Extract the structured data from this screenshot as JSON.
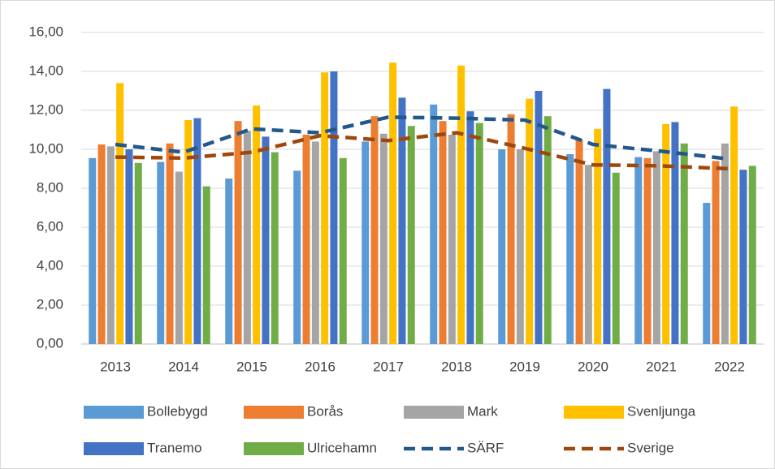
{
  "chart_data": {
    "type": "bar",
    "categories": [
      "2013",
      "2014",
      "2015",
      "2016",
      "2017",
      "2018",
      "2019",
      "2020",
      "2021",
      "2022"
    ],
    "series": [
      {
        "name": "Bollebygd",
        "type": "bar",
        "color": "#5b9bd5",
        "values": [
          9.55,
          9.35,
          8.5,
          8.9,
          10.4,
          12.3,
          10.0,
          9.75,
          9.6,
          7.25
        ]
      },
      {
        "name": "Borås",
        "type": "bar",
        "color": "#ed7d31",
        "values": [
          10.25,
          10.3,
          11.45,
          10.75,
          11.7,
          11.45,
          11.8,
          10.5,
          9.55,
          9.4
        ]
      },
      {
        "name": "Mark",
        "type": "bar",
        "color": "#a5a5a5",
        "values": [
          10.15,
          8.85,
          10.95,
          10.4,
          10.8,
          10.75,
          10.0,
          9.2,
          9.9,
          10.3
        ]
      },
      {
        "name": "Svenljunga",
        "type": "bar",
        "color": "#ffc000",
        "values": [
          13.4,
          11.5,
          12.25,
          13.95,
          14.45,
          14.3,
          12.6,
          11.05,
          11.3,
          12.2
        ]
      },
      {
        "name": "Tranemo",
        "type": "bar",
        "color": "#4472c4",
        "values": [
          10.0,
          11.6,
          10.65,
          14.0,
          12.65,
          11.95,
          13.0,
          13.1,
          11.4,
          8.95
        ]
      },
      {
        "name": "Ulricehamn",
        "type": "bar",
        "color": "#70ad47",
        "values": [
          9.3,
          8.1,
          9.85,
          9.55,
          11.2,
          11.35,
          11.7,
          8.8,
          10.3,
          9.15
        ]
      },
      {
        "name": "SÄRF",
        "type": "line",
        "dashed": true,
        "color": "#23598a",
        "values": [
          10.25,
          9.85,
          11.05,
          10.85,
          11.65,
          11.6,
          11.5,
          10.25,
          9.9,
          9.5
        ]
      },
      {
        "name": "Sverige",
        "type": "line",
        "dashed": true,
        "color": "#9e480e",
        "values": [
          9.6,
          9.55,
          9.85,
          10.7,
          10.45,
          10.85,
          10.05,
          9.2,
          9.15,
          9.0
        ]
      }
    ],
    "ylim": [
      0,
      16
    ],
    "yticks": [
      {
        "value": 0,
        "label": "0,00"
      },
      {
        "value": 2,
        "label": "2,00"
      },
      {
        "value": 4,
        "label": "4,00"
      },
      {
        "value": 6,
        "label": "6,00"
      },
      {
        "value": 8,
        "label": "8,00"
      },
      {
        "value": 10,
        "label": "10,00"
      },
      {
        "value": 12,
        "label": "12,00"
      },
      {
        "value": 14,
        "label": "14,00"
      },
      {
        "value": 16,
        "label": "16,00"
      }
    ],
    "grid": true
  }
}
